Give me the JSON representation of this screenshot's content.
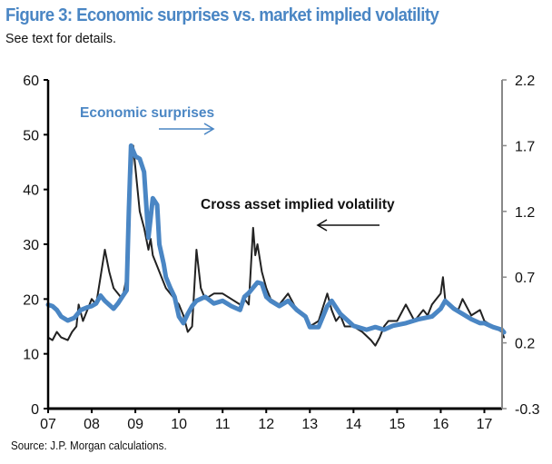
{
  "chart_data": {
    "type": "line",
    "title": "Figure 3: Economic surprises vs. market implied volatility",
    "subtitle": "See text for details.",
    "source": "Source: J.P. Morgan calculations.",
    "x_axis": {
      "ticks": [
        "07",
        "08",
        "09",
        "10",
        "11",
        "12",
        "13",
        "14",
        "15",
        "16",
        "17"
      ],
      "range": [
        2007.0,
        2017.5
      ]
    },
    "left_axis": {
      "ticks": [
        "0",
        "10",
        "20",
        "30",
        "40",
        "50",
        "60"
      ],
      "range": [
        0,
        60
      ]
    },
    "right_axis": {
      "ticks": [
        "-0.3",
        "0.2",
        "0.7",
        "1.2",
        "1.7",
        "2.2"
      ],
      "range": [
        -0.3,
        2.2
      ]
    },
    "series": [
      {
        "name": "Cross asset implied volatility",
        "axis": "left",
        "color": "#222222",
        "x": [
          2007.0,
          2007.1,
          2007.2,
          2007.3,
          2007.45,
          2007.55,
          2007.65,
          2007.7,
          2007.8,
          2007.9,
          2008.0,
          2008.1,
          2008.2,
          2008.3,
          2008.4,
          2008.5,
          2008.6,
          2008.7,
          2008.75,
          2008.8,
          2008.85,
          2008.9,
          2008.95,
          2009.0,
          2009.05,
          2009.1,
          2009.2,
          2009.3,
          2009.35,
          2009.4,
          2009.5,
          2009.6,
          2009.7,
          2009.8,
          2009.9,
          2010.0,
          2010.1,
          2010.2,
          2010.3,
          2010.35,
          2010.4,
          2010.5,
          2010.6,
          2010.8,
          2011.0,
          2011.2,
          2011.4,
          2011.5,
          2011.6,
          2011.65,
          2011.7,
          2011.75,
          2011.8,
          2011.9,
          2012.0,
          2012.1,
          2012.3,
          2012.5,
          2012.7,
          2012.9,
          2013.0,
          2013.2,
          2013.4,
          2013.5,
          2013.6,
          2013.7,
          2013.8,
          2014.0,
          2014.2,
          2014.4,
          2014.5,
          2014.6,
          2014.7,
          2014.8,
          2015.0,
          2015.2,
          2015.4,
          2015.5,
          2015.6,
          2015.7,
          2015.8,
          2015.9,
          2016.0,
          2016.05,
          2016.1,
          2016.2,
          2016.4,
          2016.5,
          2016.7,
          2016.9,
          2017.0,
          2017.2,
          2017.4,
          2017.45
        ],
        "values": [
          13,
          12.5,
          14,
          13,
          12.5,
          14,
          15,
          19,
          16,
          18,
          20,
          19,
          24,
          29,
          25,
          22,
          21,
          20,
          22,
          24,
          30,
          42,
          48,
          44,
          40,
          36,
          33,
          29,
          31,
          28,
          26,
          24,
          22,
          21,
          20,
          19,
          17,
          14,
          15,
          22,
          29,
          22,
          20,
          21,
          21,
          20,
          19,
          20,
          19,
          26,
          33,
          28,
          30,
          25,
          22,
          20,
          19,
          21,
          18,
          17,
          15,
          16,
          21,
          18,
          16,
          17,
          15,
          15,
          14,
          12.5,
          11.5,
          13,
          15,
          16,
          16,
          19,
          16,
          17,
          18,
          17,
          19,
          20,
          21,
          24,
          20,
          19,
          18,
          20,
          17,
          18,
          16,
          15,
          14,
          13
        ]
      },
      {
        "name": "Economic surprises",
        "axis": "right",
        "color": "#4a86c4",
        "x": [
          2007.0,
          2007.1,
          2007.2,
          2007.3,
          2007.45,
          2007.6,
          2007.75,
          2007.9,
          2008.0,
          2008.1,
          2008.2,
          2008.3,
          2008.5,
          2008.6,
          2008.7,
          2008.8,
          2008.85,
          2008.9,
          2008.95,
          2009.0,
          2009.1,
          2009.2,
          2009.3,
          2009.35,
          2009.4,
          2009.5,
          2009.55,
          2009.65,
          2009.7,
          2009.8,
          2009.9,
          2010.0,
          2010.1,
          2010.2,
          2010.3,
          2010.4,
          2010.6,
          2010.8,
          2011.0,
          2011.2,
          2011.4,
          2011.5,
          2011.6,
          2011.7,
          2011.8,
          2011.9,
          2012.0,
          2012.1,
          2012.3,
          2012.5,
          2012.7,
          2012.9,
          2013.0,
          2013.2,
          2013.4,
          2013.5,
          2013.7,
          2013.9,
          2014.0,
          2014.3,
          2014.5,
          2014.7,
          2014.9,
          2015.2,
          2015.5,
          2015.8,
          2016.0,
          2016.1,
          2016.3,
          2016.5,
          2016.7,
          2016.9,
          2017.0,
          2017.2,
          2017.4,
          2017.45
        ],
        "values": [
          0.49,
          0.48,
          0.45,
          0.4,
          0.37,
          0.39,
          0.45,
          0.47,
          0.48,
          0.5,
          0.56,
          0.52,
          0.46,
          0.5,
          0.55,
          0.6,
          1.2,
          1.7,
          1.66,
          1.62,
          1.6,
          1.5,
          1.0,
          1.15,
          1.3,
          1.25,
          0.95,
          0.8,
          0.7,
          0.62,
          0.55,
          0.4,
          0.35,
          0.42,
          0.48,
          0.52,
          0.55,
          0.5,
          0.52,
          0.48,
          0.45,
          0.55,
          0.58,
          0.62,
          0.66,
          0.65,
          0.55,
          0.52,
          0.48,
          0.52,
          0.45,
          0.4,
          0.32,
          0.32,
          0.48,
          0.52,
          0.42,
          0.36,
          0.33,
          0.3,
          0.32,
          0.3,
          0.33,
          0.35,
          0.38,
          0.4,
          0.46,
          0.52,
          0.46,
          0.42,
          0.38,
          0.35,
          0.35,
          0.32,
          0.3,
          0.28
        ]
      }
    ],
    "annotations": [
      {
        "text": "Economic surprises",
        "color": "#4a86c4",
        "arrow": "right"
      },
      {
        "text": "Cross asset implied volatility",
        "color": "#111111",
        "arrow": "left"
      }
    ],
    "grid": false,
    "legend": "none (inline annotations)"
  }
}
